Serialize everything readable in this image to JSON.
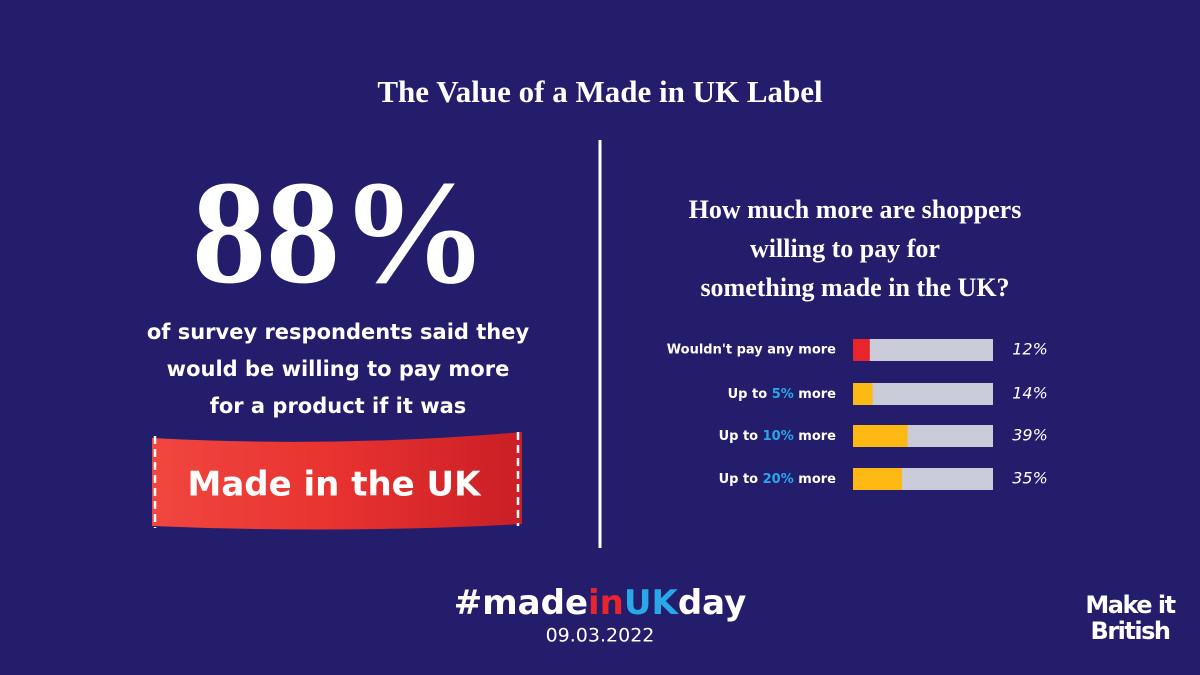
{
  "title": "The Value of a Made in UK Label",
  "headline": {
    "figure": "88%",
    "lines": [
      "of survey respondents said they",
      "would be willing to pay more",
      "for a product if it was"
    ],
    "banner": "Made in the UK"
  },
  "chart_data": {
    "type": "bar",
    "orientation": "horizontal",
    "title_lines": [
      "How much more are shoppers",
      "willing to pay for",
      "something made in the UK?"
    ],
    "categories": [
      "Wouldn't pay any more",
      "Up to 5% more",
      "Up to 10% more",
      "Up to 20% more"
    ],
    "values": [
      12,
      14,
      39,
      35
    ],
    "value_labels": [
      "12%",
      "14%",
      "39%",
      "35%"
    ],
    "colors": [
      "#e8242c",
      "#fdb813",
      "#fdb813",
      "#fdb813"
    ],
    "track_color": "#c9ccd8",
    "highlight_color": "#29a8e8",
    "xlim": [
      0,
      100
    ]
  },
  "footer": {
    "hashtag_parts": [
      "#made",
      "in",
      "UK",
      "day"
    ],
    "hashtag_colors": [
      "#ffffff",
      "#e8242c",
      "#29a8e8",
      "#ffffff"
    ],
    "date": "09.03.2022",
    "logo": [
      "Make it",
      "British"
    ]
  }
}
